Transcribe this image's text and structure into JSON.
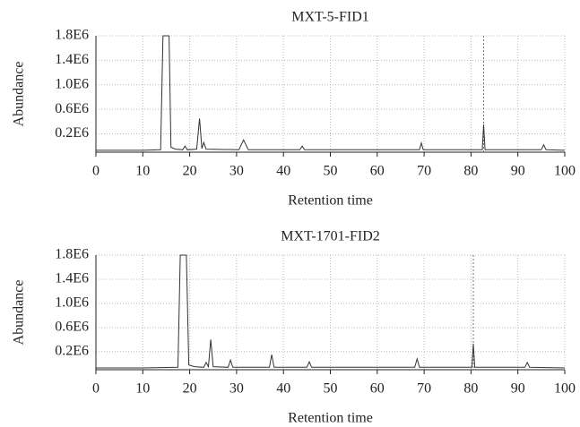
{
  "chart_data": [
    {
      "type": "line",
      "title": "MXT-5-FID1",
      "x_label": "Retention time",
      "y_label": "Abundance",
      "x": [
        0,
        10,
        13.8,
        14.3,
        15.6,
        16,
        17,
        18.5,
        19,
        19.5,
        21.5,
        22.1,
        22.6,
        23,
        23.5,
        30.5,
        31.5,
        32.5,
        43.5,
        44,
        44.5,
        69,
        69.4,
        69.8,
        82.4,
        82.7,
        83,
        95,
        95.5,
        96,
        100
      ],
      "values": [
        -70000,
        -70000,
        -60000,
        1800000,
        1800000,
        -20000,
        -50000,
        -60000,
        0,
        -60000,
        -50000,
        450000,
        -40000,
        60000,
        -50000,
        -60000,
        100000,
        -60000,
        -60000,
        0,
        -60000,
        -60000,
        50000,
        -60000,
        -60000,
        350000,
        -60000,
        -60000,
        20000,
        -60000,
        -70000
      ],
      "color": "#333333",
      "reference_line_x": 82.7,
      "xlim": [
        0,
        100
      ],
      "xticks": [
        0,
        10,
        20,
        30,
        40,
        50,
        60,
        70,
        80,
        90,
        100
      ],
      "ylim": [
        -100000,
        1800000
      ],
      "yticks": [
        {
          "value": 200000,
          "label": "0.2E6"
        },
        {
          "value": 600000,
          "label": "0.6E6"
        },
        {
          "value": 1000000,
          "label": "1.0E6"
        },
        {
          "value": 1400000,
          "label": "1.4E6"
        },
        {
          "value": 1800000,
          "label": "1.8E6"
        }
      ],
      "grid": true
    },
    {
      "type": "line",
      "title": "MXT-1701-FID2",
      "x_label": "Retention time",
      "y_label": "Abundance",
      "x": [
        0,
        10,
        17.5,
        18,
        19.3,
        19.8,
        21,
        23,
        23.5,
        24,
        24.5,
        25,
        28.2,
        28.7,
        29.2,
        37,
        37.5,
        38,
        45,
        45.5,
        46,
        68,
        68.5,
        69,
        80.2,
        80.5,
        80.8,
        91.5,
        92,
        92.5,
        100
      ],
      "values": [
        -70000,
        -70000,
        -60000,
        1800000,
        1800000,
        -20000,
        -50000,
        -60000,
        20000,
        -50000,
        400000,
        -50000,
        -60000,
        60000,
        -60000,
        -60000,
        150000,
        -60000,
        -60000,
        30000,
        -60000,
        -60000,
        80000,
        -60000,
        -60000,
        330000,
        -60000,
        -60000,
        20000,
        -60000,
        -70000
      ],
      "color": "#333333",
      "reference_line_x": 80.5,
      "xlim": [
        0,
        100
      ],
      "xticks": [
        0,
        10,
        20,
        30,
        40,
        50,
        60,
        70,
        80,
        90,
        100
      ],
      "ylim": [
        -100000,
        1800000
      ],
      "yticks": [
        {
          "value": 200000,
          "label": "0.2E6"
        },
        {
          "value": 600000,
          "label": "0.6E6"
        },
        {
          "value": 1000000,
          "label": "1.0E6"
        },
        {
          "value": 1400000,
          "label": "1.4E6"
        },
        {
          "value": 1800000,
          "label": "1.8E6"
        }
      ],
      "grid": true
    }
  ]
}
